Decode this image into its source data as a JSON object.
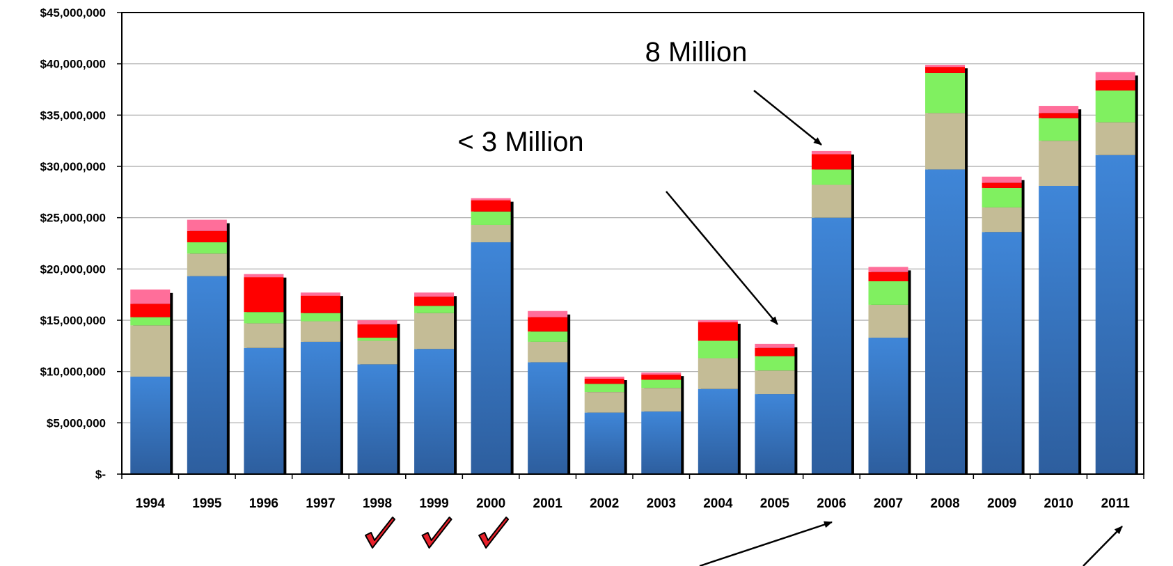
{
  "chart_data": {
    "type": "bar",
    "stacked": true,
    "title": "",
    "xlabel": "",
    "ylabel": "",
    "ylim": [
      0,
      45000000
    ],
    "y_tick_labels": [
      "$-",
      "$5,000,000",
      "$10,000,000",
      "$15,000,000",
      "$20,000,000",
      "$25,000,000",
      "$30,000,000",
      "$35,000,000",
      "$40,000,000",
      "$45,000,000"
    ],
    "y_tick_values": [
      0,
      5000000,
      10000000,
      15000000,
      20000000,
      25000000,
      30000000,
      35000000,
      40000000,
      45000000
    ],
    "grid": true,
    "legend": "none",
    "categories": [
      "1994",
      "1995",
      "1996",
      "1997",
      "1998",
      "1999",
      "2000",
      "2001",
      "2002",
      "2003",
      "2004",
      "2005",
      "2006",
      "2007",
      "2008",
      "2009",
      "2010",
      "2011"
    ],
    "series": [
      {
        "color": "#3a78c4",
        "values": [
          9500000,
          19300000,
          12300000,
          12900000,
          10700000,
          12200000,
          22600000,
          10900000,
          6000000,
          6100000,
          8300000,
          7800000,
          25000000,
          13300000,
          29700000,
          23600000,
          28100000,
          31100000
        ]
      },
      {
        "color": "#c4bc96",
        "values": [
          5000000,
          2200000,
          2400000,
          2000000,
          2300000,
          3500000,
          1700000,
          2000000,
          2000000,
          2300000,
          3000000,
          2300000,
          3200000,
          3200000,
          5500000,
          2400000,
          4400000,
          3200000
        ]
      },
      {
        "color": "#80f060",
        "values": [
          800000,
          1100000,
          1100000,
          800000,
          300000,
          700000,
          1300000,
          1000000,
          800000,
          800000,
          1700000,
          1400000,
          1500000,
          2300000,
          3900000,
          1900000,
          2200000,
          3100000
        ]
      },
      {
        "color": "#ff0000",
        "values": [
          1300000,
          1100000,
          3400000,
          1700000,
          1300000,
          900000,
          1100000,
          1400000,
          500000,
          500000,
          1800000,
          800000,
          1500000,
          900000,
          600000,
          500000,
          500000,
          1000000
        ]
      },
      {
        "color": "#ff6e9a",
        "values": [
          1400000,
          1100000,
          300000,
          300000,
          400000,
          400000,
          200000,
          600000,
          200000,
          200000,
          200000,
          400000,
          300000,
          500000,
          200000,
          600000,
          700000,
          800000
        ]
      }
    ],
    "annotations": [
      {
        "label": "8 Million"
      },
      {
        "label": "< 3 Million"
      }
    ],
    "checkmarks_under": [
      "1998",
      "1999",
      "2000"
    ]
  }
}
